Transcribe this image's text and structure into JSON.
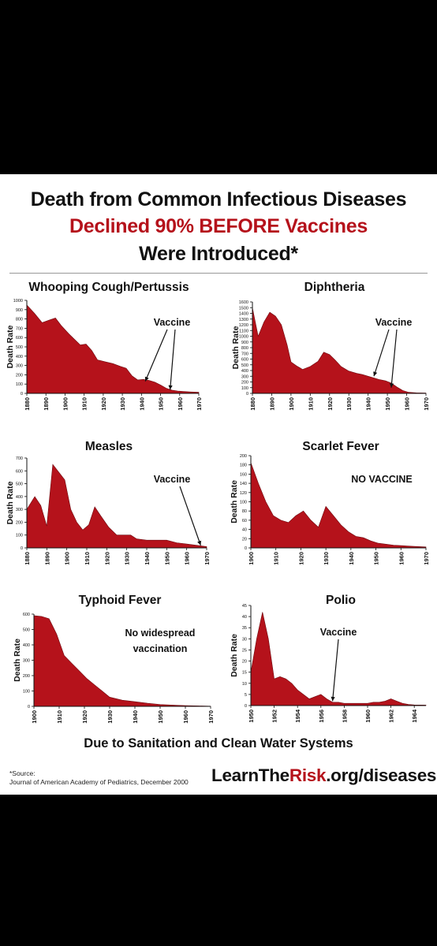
{
  "header": {
    "line1": "Death from Common Infectious Diseases",
    "line2": "Declined 90% BEFORE Vaccines",
    "line3": "Were Introduced*"
  },
  "footer": {
    "note": "Due to Sanitation and Clean Water Systems",
    "source_label": "*Source:",
    "source_text": "Journal of American Academy of Pediatrics, December 2000",
    "site_part1": "LearnThe",
    "site_part2": "Risk",
    "site_part3": ".org/diseases"
  },
  "colors": {
    "fill": "#b5121b",
    "accent": "#b5121b",
    "background": "#000000"
  },
  "chart_data": [
    {
      "type": "area",
      "title": "Whooping Cough/Pertussis",
      "ylabel": "Death Rate",
      "xlabel": "",
      "xlim": [
        1880,
        1970
      ],
      "ylim": [
        0,
        1000
      ],
      "xticks": [
        "1880",
        "1890",
        "1900",
        "1910",
        "1920",
        "1930",
        "1940",
        "1950",
        "1960",
        "1970"
      ],
      "yticks": [
        "0",
        "100",
        "200",
        "300",
        "400",
        "500",
        "600",
        "700",
        "800",
        "900",
        "1000"
      ],
      "x": [
        1880,
        1884,
        1888,
        1892,
        1895,
        1898,
        1902,
        1905,
        1908,
        1911,
        1914,
        1917,
        1921,
        1925,
        1929,
        1932,
        1935,
        1938,
        1941,
        1944,
        1947,
        1950,
        1953,
        1956,
        1959,
        1962,
        1966,
        1970
      ],
      "y": [
        950,
        860,
        760,
        790,
        810,
        730,
        640,
        580,
        520,
        530,
        460,
        360,
        340,
        320,
        290,
        270,
        190,
        145,
        150,
        140,
        120,
        90,
        55,
        35,
        25,
        20,
        15,
        12
      ],
      "annotation": {
        "text": "Vaccine",
        "arrows_to": [
          [
            1942,
            130
          ],
          [
            1955,
            40
          ]
        ]
      }
    },
    {
      "type": "area",
      "title": "Diphtheria",
      "ylabel": "Death Rate",
      "xlabel": "",
      "xlim": [
        1880,
        1970
      ],
      "ylim": [
        0,
        1600
      ],
      "xticks": [
        "1880",
        "1890",
        "1900",
        "1910",
        "1920",
        "1930",
        "1940",
        "1950",
        "1960",
        "1970"
      ],
      "yticks": [
        "0",
        "100",
        "200",
        "300",
        "400",
        "500",
        "600",
        "700",
        "800",
        "900",
        "1000",
        "1100",
        "1200",
        "1300",
        "1400",
        "1500",
        "1600"
      ],
      "x": [
        1880,
        1883,
        1886,
        1889,
        1892,
        1895,
        1898,
        1900,
        1903,
        1906,
        1910,
        1914,
        1917,
        1920,
        1923,
        1926,
        1930,
        1934,
        1937,
        1940,
        1943,
        1946,
        1949,
        1952,
        1955,
        1958,
        1961,
        1965,
        1970
      ],
      "y": [
        1500,
        1000,
        1250,
        1420,
        1350,
        1200,
        850,
        550,
        480,
        420,
        470,
        560,
        720,
        680,
        580,
        470,
        390,
        350,
        330,
        300,
        270,
        240,
        220,
        180,
        110,
        50,
        20,
        10,
        5
      ],
      "annotation": {
        "text": "Vaccine",
        "arrows_to": [
          [
            1943,
            300
          ],
          [
            1952,
            100
          ]
        ]
      }
    },
    {
      "type": "area",
      "title": "Measles",
      "ylabel": "Death Rate",
      "xlabel": "",
      "xlim": [
        1880,
        1970
      ],
      "ylim": [
        0,
        700
      ],
      "xticks": [
        "1880",
        "1890",
        "1900",
        "1910",
        "1920",
        "1930",
        "1940",
        "1950",
        "1960",
        "1970"
      ],
      "yticks": [
        "0",
        "100",
        "200",
        "300",
        "400",
        "500",
        "600",
        "700"
      ],
      "x": [
        1880,
        1884,
        1887,
        1890,
        1893,
        1896,
        1899,
        1902,
        1905,
        1908,
        1911,
        1914,
        1917,
        1921,
        1925,
        1929,
        1932,
        1935,
        1940,
        1945,
        1950,
        1955,
        1960,
        1965,
        1970
      ],
      "y": [
        300,
        400,
        330,
        170,
        650,
        590,
        530,
        300,
        200,
        140,
        180,
        320,
        250,
        160,
        100,
        100,
        100,
        70,
        60,
        60,
        60,
        40,
        30,
        20,
        10
      ],
      "annotation": {
        "text": "Vaccine",
        "arrows_to": [
          [
            1967,
            20
          ]
        ]
      }
    },
    {
      "type": "area",
      "title": "Scarlet Fever",
      "ylabel": "Death Rate",
      "xlabel": "",
      "xlim": [
        1900,
        1970
      ],
      "ylim": [
        0,
        200
      ],
      "xticks": [
        "1900",
        "1910",
        "1920",
        "1930",
        "1940",
        "1950",
        "1960",
        "1970"
      ],
      "yticks": [
        "0",
        "20",
        "40",
        "60",
        "80",
        "100",
        "120",
        "140",
        "160",
        "180",
        "200"
      ],
      "x": [
        1900,
        1903,
        1906,
        1909,
        1912,
        1915,
        1918,
        1921,
        1924,
        1927,
        1930,
        1933,
        1936,
        1939,
        1942,
        1945,
        1948,
        1951,
        1954,
        1957,
        1960,
        1963,
        1966,
        1970
      ],
      "y": [
        185,
        140,
        100,
        70,
        60,
        55,
        70,
        80,
        60,
        45,
        90,
        70,
        50,
        35,
        25,
        22,
        15,
        10,
        8,
        6,
        5,
        4,
        3,
        2
      ],
      "annotation": {
        "text": "NO VACCINE",
        "arrows_to": []
      }
    },
    {
      "type": "area",
      "title": "Typhoid Fever",
      "ylabel": "Death Rate",
      "xlabel": "",
      "xlim": [
        1900,
        1970
      ],
      "ylim": [
        0,
        600
      ],
      "xticks": [
        "1900",
        "1910",
        "1920",
        "1930",
        "1940",
        "1950",
        "1960",
        "1970"
      ],
      "yticks": [
        "0",
        "100",
        "200",
        "300",
        "400",
        "500",
        "600"
      ],
      "x": [
        1900,
        1903,
        1906,
        1909,
        1912,
        1915,
        1918,
        1921,
        1924,
        1927,
        1930,
        1935,
        1940,
        1945,
        1950,
        1955,
        1960,
        1965,
        1970
      ],
      "y": [
        590,
        585,
        570,
        470,
        330,
        280,
        230,
        180,
        140,
        100,
        60,
        40,
        30,
        20,
        12,
        8,
        5,
        3,
        1
      ],
      "annotation": {
        "text": "No widespread vaccination",
        "arrows_to": []
      }
    },
    {
      "type": "area",
      "title": "Polio",
      "ylabel": "Death Rate",
      "xlabel": "",
      "xlim": [
        1950,
        1965
      ],
      "ylim": [
        0,
        45
      ],
      "xticks": [
        "1950",
        "1952",
        "1954",
        "1956",
        "1958",
        "1960",
        "1962",
        "1964"
      ],
      "yticks": [
        "0",
        "5",
        "10",
        "15",
        "20",
        "25",
        "30",
        "35",
        "40",
        "45"
      ],
      "x": [
        1950,
        1950.5,
        1951,
        1951.5,
        1952,
        1952.5,
        1953,
        1953.5,
        1954,
        1955,
        1955.5,
        1956,
        1956.5,
        1957,
        1957.5,
        1958,
        1959,
        1960,
        1960.5,
        1961,
        1961.5,
        1962,
        1962.5,
        1963,
        1963.5,
        1964,
        1965
      ],
      "y": [
        15,
        30,
        42,
        30,
        12,
        13,
        12,
        10,
        7,
        3,
        4,
        5,
        3,
        1.5,
        1.5,
        1,
        1,
        1,
        1.5,
        1.5,
        2,
        3,
        2,
        1,
        0.5,
        0.3,
        0.2
      ],
      "annotation": {
        "text": "Vaccine",
        "arrows_to": [
          [
            1957,
            2
          ]
        ]
      }
    }
  ]
}
